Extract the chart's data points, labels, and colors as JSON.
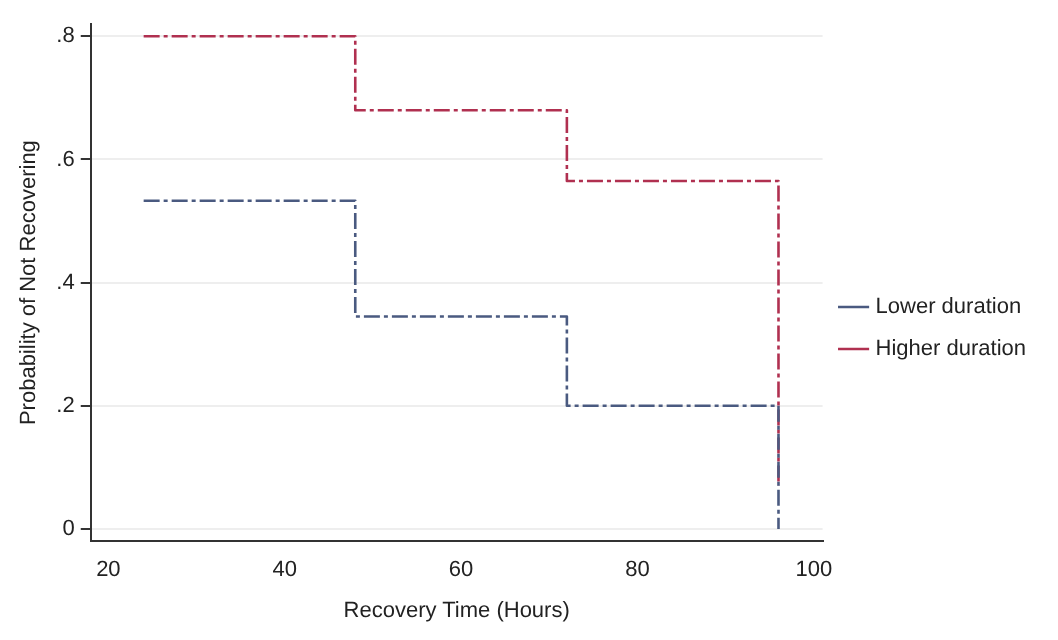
{
  "chart_data": {
    "type": "step",
    "xlabel": "Recovery Time (Hours)",
    "ylabel": "Probability of Not Recovering",
    "series": [
      {
        "name": "Lower duration",
        "color": "#4a5a80",
        "x": [
          24,
          48,
          72,
          96,
          96
        ],
        "values": [
          0.533,
          0.345,
          0.2,
          0.2,
          0
        ]
      },
      {
        "name": "Higher duration",
        "color": "#b03050",
        "x": [
          24,
          48,
          72,
          96,
          96
        ],
        "values": [
          0.8,
          0.68,
          0.565,
          0.565,
          0.07
        ]
      }
    ],
    "xlim": [
      18,
      101
    ],
    "xticks": [
      20,
      40,
      60,
      80,
      100
    ],
    "ylim": [
      -0.02,
      0.82
    ],
    "yticks": [
      0,
      {
        "value": 0.2,
        "label": ".2"
      },
      {
        "value": 0.4,
        "label": ".4"
      },
      {
        "value": 0.6,
        "label": ".6"
      },
      {
        "value": 0.8,
        "label": ".8"
      }
    ],
    "grid": "y",
    "legend": "right",
    "line_style": "dashed"
  }
}
